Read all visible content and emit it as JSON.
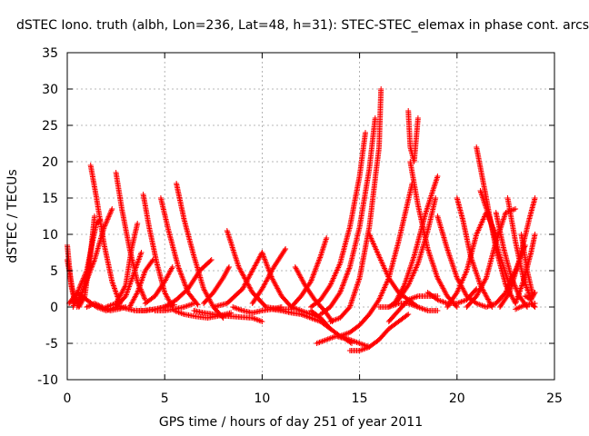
{
  "chart_data": {
    "type": "scatter",
    "title": "dSTEC Iono. truth (albh, Lon=236, Lat=48, h=31): STEC-STEC_elemax in phase cont. arcs",
    "xlabel": "GPS time / hours of day 251 of year 2011",
    "ylabel": "dSTEC  / TECUs",
    "xlim": [
      0,
      25
    ],
    "ylim": [
      -10,
      35
    ],
    "xticks": [
      0,
      5,
      10,
      15,
      20,
      25
    ],
    "yticks": [
      -10,
      -5,
      0,
      5,
      10,
      15,
      20,
      25,
      30,
      35
    ],
    "grid": true,
    "marker": "+",
    "color": "#ff0000",
    "series": [
      {
        "x": [
          0.0,
          0.2,
          0.4,
          0.7,
          1.0,
          1.2
        ],
        "y": [
          8.5,
          3.0,
          0.5,
          1.5,
          4.0,
          6.0
        ]
      },
      {
        "x": [
          0.0,
          0.3,
          0.6,
          0.9,
          1.2,
          1.4
        ],
        "y": [
          6.5,
          2.0,
          0.0,
          1.5,
          7.5,
          12.5
        ]
      },
      {
        "x": [
          0.3,
          0.6,
          1.0,
          1.3,
          1.5,
          1.7
        ],
        "y": [
          0.0,
          2.5,
          5.0,
          9.0,
          11.5,
          12.0
        ]
      },
      {
        "x": [
          0.1,
          0.5,
          1.0,
          1.5,
          2.0,
          2.5
        ],
        "y": [
          0.5,
          2.0,
          1.0,
          0.0,
          -0.5,
          0.0
        ]
      },
      {
        "x": [
          1.2,
          1.5,
          1.9,
          2.3,
          2.7
        ],
        "y": [
          19.5,
          15.0,
          8.5,
          3.5,
          0.5
        ]
      },
      {
        "x": [
          0.5,
          0.9,
          1.4,
          1.9,
          2.3
        ],
        "y": [
          0.0,
          3.0,
          6.5,
          11.0,
          13.5
        ]
      },
      {
        "x": [
          1.0,
          1.4,
          1.8,
          2.2,
          2.6,
          3.0
        ],
        "y": [
          0.0,
          0.5,
          0.0,
          -0.5,
          -0.3,
          0.0
        ]
      },
      {
        "x": [
          2.5,
          2.8,
          3.2,
          3.6,
          4.0
        ],
        "y": [
          18.5,
          13.5,
          8.0,
          3.5,
          1.0
        ]
      },
      {
        "x": [
          2.0,
          2.5,
          3.0,
          3.3,
          3.6
        ],
        "y": [
          0.0,
          0.5,
          3.0,
          8.0,
          11.5
        ]
      },
      {
        "x": [
          2.5,
          3.0,
          3.4,
          3.8
        ],
        "y": [
          0.0,
          1.5,
          4.5,
          7.5
        ]
      },
      {
        "x": [
          2.5,
          3.0,
          3.5,
          4.0,
          4.5,
          5.0
        ],
        "y": [
          0.3,
          -0.2,
          -0.5,
          -0.5,
          -0.3,
          0.0
        ]
      },
      {
        "x": [
          3.9,
          4.2,
          4.6,
          5.0,
          5.4
        ],
        "y": [
          15.5,
          11.0,
          6.0,
          2.0,
          0.0
        ]
      },
      {
        "x": [
          3.2,
          3.6,
          4.0,
          4.4
        ],
        "y": [
          0.0,
          2.0,
          5.0,
          6.5
        ]
      },
      {
        "x": [
          3.5,
          4.0,
          4.5,
          5.0,
          5.5
        ],
        "y": [
          -0.5,
          -0.5,
          -0.3,
          0.0,
          0.3
        ]
      },
      {
        "x": [
          4.8,
          5.2,
          5.7,
          6.2,
          6.7
        ],
        "y": [
          15.0,
          10.5,
          5.5,
          2.0,
          0.3
        ]
      },
      {
        "x": [
          4.0,
          4.5,
          5.0,
          5.4
        ],
        "y": [
          0.5,
          1.5,
          3.5,
          5.5
        ]
      },
      {
        "x": [
          4.5,
          5.0,
          5.5,
          6.0,
          6.5
        ],
        "y": [
          -0.5,
          -0.5,
          -0.3,
          0.0,
          0.5
        ]
      },
      {
        "x": [
          5.6,
          6.0,
          6.5,
          7.0,
          7.5,
          8.0
        ],
        "y": [
          17.0,
          12.0,
          7.0,
          2.5,
          0.0,
          -1.5
        ]
      },
      {
        "x": [
          5.0,
          5.6,
          6.2,
          6.8,
          7.4
        ],
        "y": [
          0.0,
          1.0,
          2.5,
          5.0,
          6.5
        ]
      },
      {
        "x": [
          5.5,
          6.0,
          6.6,
          7.2,
          7.8,
          8.4
        ],
        "y": [
          -0.5,
          -1.0,
          -1.3,
          -1.5,
          -1.2,
          -0.8
        ]
      },
      {
        "x": [
          6.5,
          7.0,
          7.5,
          8.0,
          8.5,
          9.0,
          9.5,
          10.0
        ],
        "y": [
          -0.5,
          -0.8,
          -1.0,
          -1.2,
          -1.3,
          -1.4,
          -1.5,
          -2.0
        ]
      },
      {
        "x": [
          7.0,
          7.5,
          8.0,
          8.3
        ],
        "y": [
          0.5,
          2.0,
          4.0,
          5.5
        ]
      },
      {
        "x": [
          8.2,
          8.8,
          9.5,
          10.2,
          11.0,
          11.5
        ],
        "y": [
          10.5,
          5.5,
          2.0,
          0.0,
          -0.3,
          -0.3
        ]
      },
      {
        "x": [
          7.5,
          8.2,
          9.0,
          9.6,
          10.0
        ],
        "y": [
          0.0,
          0.5,
          2.5,
          5.5,
          7.5
        ]
      },
      {
        "x": [
          8.5,
          9.0,
          9.5,
          10.0,
          10.5,
          11.0
        ],
        "y": [
          0.0,
          -0.5,
          -0.8,
          -0.5,
          -0.3,
          0.0
        ]
      },
      {
        "x": [
          10.0,
          10.5,
          11.0,
          11.5,
          12.0,
          12.5,
          13.0
        ],
        "y": [
          7.5,
          4.0,
          1.5,
          0.0,
          -0.5,
          -1.0,
          -1.5
        ]
      },
      {
        "x": [
          9.5,
          10.0,
          10.6,
          11.2
        ],
        "y": [
          0.5,
          2.5,
          5.5,
          8.0
        ]
      },
      {
        "x": [
          10.5,
          11.0,
          11.5,
          12.0,
          12.5,
          13.0,
          13.5
        ],
        "y": [
          -0.3,
          -0.5,
          -0.8,
          -1.0,
          -1.5,
          -2.0,
          -3.0
        ]
      },
      {
        "x": [
          11.7,
          12.2,
          12.7,
          13.2,
          13.6
        ],
        "y": [
          5.5,
          3.0,
          1.0,
          -0.5,
          -2.0
        ]
      },
      {
        "x": [
          11.5,
          12.0,
          12.5,
          13.0,
          13.3
        ],
        "y": [
          0.0,
          1.5,
          3.5,
          7.0,
          9.5
        ]
      },
      {
        "x": [
          12.5,
          13.0,
          13.5,
          14.0,
          14.5,
          15.0,
          15.5
        ],
        "y": [
          -0.5,
          -1.5,
          -3.0,
          -4.0,
          -4.5,
          -5.0,
          -5.5
        ]
      },
      {
        "x": [
          12.8,
          13.3,
          13.8,
          14.2,
          14.6
        ],
        "y": [
          -5.0,
          -4.5,
          -4.0,
          -4.3,
          -5.0
        ]
      },
      {
        "x": [
          12.5,
          13.0,
          13.5,
          14.0,
          14.5,
          15.0,
          15.3
        ],
        "y": [
          0.0,
          1.0,
          3.0,
          6.0,
          11.0,
          18.0,
          24.0
        ]
      },
      {
        "x": [
          13.0,
          13.5,
          14.0,
          14.5,
          15.0,
          15.5,
          15.8
        ],
        "y": [
          -1.0,
          0.0,
          2.0,
          5.5,
          11.0,
          19.0,
          26.0
        ]
      },
      {
        "x": [
          13.5,
          14.0,
          14.5,
          15.0,
          15.5,
          16.0,
          16.1
        ],
        "y": [
          -2.0,
          -1.5,
          0.0,
          4.0,
          11.0,
          22.0,
          30.0
        ]
      },
      {
        "x": [
          14.5,
          15.0,
          15.5,
          16.0,
          16.5,
          17.0,
          17.5
        ],
        "y": [
          -6.0,
          -6.0,
          -5.5,
          -4.5,
          -3.0,
          -2.0,
          -1.0
        ]
      },
      {
        "x": [
          14.0,
          14.5,
          15.0,
          15.5,
          16.0,
          16.5,
          17.0,
          17.7
        ],
        "y": [
          -4.0,
          -3.5,
          -2.5,
          -1.0,
          1.0,
          4.0,
          9.0,
          17.0
        ]
      },
      {
        "x": [
          15.5,
          16.0,
          16.5,
          17.0,
          17.5,
          18.0
        ],
        "y": [
          10.0,
          7.0,
          4.0,
          2.0,
          1.0,
          0.0
        ]
      },
      {
        "x": [
          17.5,
          17.6,
          17.8,
          18.0
        ],
        "y": [
          27.0,
          22.0,
          20.0,
          26.0
        ]
      },
      {
        "x": [
          17.6,
          18.0,
          18.5,
          19.0,
          19.5,
          20.0
        ],
        "y": [
          20.0,
          14.0,
          8.0,
          4.0,
          1.5,
          0.0
        ]
      },
      {
        "x": [
          16.5,
          17.0,
          17.5,
          18.0,
          18.5,
          19.0
        ],
        "y": [
          -2.0,
          -0.5,
          1.0,
          1.5,
          1.5,
          1.5
        ]
      },
      {
        "x": [
          16.0,
          16.5,
          17.0,
          17.5,
          18.0,
          18.5,
          19.0
        ],
        "y": [
          0.0,
          0.0,
          0.5,
          0.5,
          0.0,
          -0.5,
          -0.5
        ]
      },
      {
        "x": [
          16.5,
          17.0,
          17.5,
          18.0,
          18.5,
          18.9
        ],
        "y": [
          0.0,
          1.0,
          3.0,
          6.0,
          10.5,
          15.0
        ]
      },
      {
        "x": [
          16.8,
          17.3,
          17.8,
          18.4,
          19.0
        ],
        "y": [
          0.5,
          3.0,
          7.0,
          13.0,
          18.0
        ]
      },
      {
        "x": [
          18.5,
          19.0,
          19.5,
          20.0,
          20.5,
          21.0
        ],
        "y": [
          2.0,
          1.0,
          0.5,
          0.5,
          1.0,
          2.5
        ]
      },
      {
        "x": [
          19.0,
          19.5,
          20.0,
          20.5,
          21.0,
          21.5
        ],
        "y": [
          12.5,
          8.0,
          4.0,
          1.5,
          0.5,
          0.0
        ]
      },
      {
        "x": [
          19.5,
          20.0,
          20.5,
          21.0,
          21.5,
          22.0
        ],
        "y": [
          0.0,
          2.0,
          5.0,
          10.0,
          13.0,
          10.0
        ]
      },
      {
        "x": [
          20.0,
          20.3,
          20.7,
          21.2,
          21.8
        ],
        "y": [
          15.0,
          12.0,
          7.0,
          3.0,
          0.0
        ]
      },
      {
        "x": [
          20.5,
          21.0,
          21.5,
          22.0,
          22.5,
          23.0
        ],
        "y": [
          0.0,
          1.5,
          4.0,
          9.0,
          13.0,
          13.5
        ]
      },
      {
        "x": [
          21.0,
          21.5,
          22.0,
          22.5,
          23.0
        ],
        "y": [
          22.0,
          15.0,
          8.0,
          3.0,
          0.5
        ]
      },
      {
        "x": [
          21.2,
          21.7,
          22.2,
          22.7
        ],
        "y": [
          16.0,
          12.0,
          7.0,
          3.0
        ]
      },
      {
        "x": [
          21.5,
          22.0,
          22.5,
          23.0,
          23.5
        ],
        "y": [
          0.0,
          0.5,
          2.0,
          5.0,
          8.5
        ]
      },
      {
        "x": [
          22.0,
          22.4,
          22.8,
          23.2,
          23.6
        ],
        "y": [
          13.0,
          8.0,
          4.0,
          1.5,
          0.0
        ]
      },
      {
        "x": [
          22.2,
          22.7,
          23.2,
          23.7,
          24.0
        ],
        "y": [
          0.0,
          2.0,
          6.5,
          12.0,
          15.0
        ]
      },
      {
        "x": [
          22.6,
          23.0,
          23.4,
          23.8
        ],
        "y": [
          15.0,
          9.0,
          4.0,
          1.0
        ]
      },
      {
        "x": [
          23.0,
          23.4,
          23.8,
          24.0
        ],
        "y": [
          0.5,
          3.5,
          7.5,
          10.0
        ]
      },
      {
        "x": [
          23.3,
          23.6,
          23.9
        ],
        "y": [
          10.0,
          5.0,
          1.5
        ]
      },
      {
        "x": [
          23.0,
          23.5,
          24.0
        ],
        "y": [
          -0.3,
          0.3,
          0.5
        ]
      },
      {
        "x": [
          23.5,
          23.8,
          24.0
        ],
        "y": [
          1.5,
          1.0,
          2.0
        ]
      },
      {
        "x": [
          23.8,
          24.0
        ],
        "y": [
          0.5,
          0.0
        ]
      }
    ]
  }
}
